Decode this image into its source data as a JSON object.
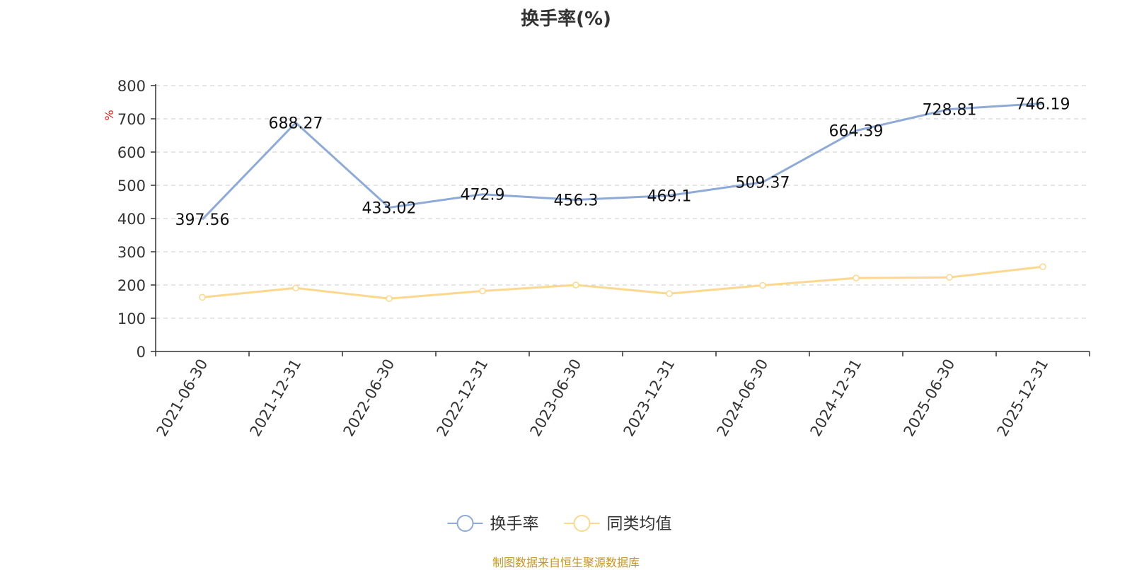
{
  "chart_data": {
    "type": "line",
    "title": "换手率(%)",
    "ylabel": "%",
    "xlabel": "",
    "categories": [
      "2021-06-30",
      "2021-12-31",
      "2022-06-30",
      "2022-12-31",
      "2023-06-30",
      "2023-12-31",
      "2024-06-30",
      "2024-12-31",
      "2025-06-30",
      "2025-12-31"
    ],
    "ylim": [
      0,
      800
    ],
    "yticks": [
      0,
      100,
      200,
      300,
      400,
      500,
      600,
      700,
      800
    ],
    "grid": true,
    "legend_position": "bottom",
    "series": [
      {
        "name": "换手率",
        "color": "#8eaad8",
        "values": [
          397.56,
          688.27,
          433.02,
          472.9,
          456.3,
          469.1,
          509.37,
          664.39,
          728.81,
          746.19
        ],
        "labels": [
          "397.56",
          "688.27",
          "433.02",
          "472.9",
          "456.3",
          "469.1",
          "509.37",
          "664.39",
          "728.81",
          "746.19"
        ],
        "show_labels": true,
        "show_markers": false
      },
      {
        "name": "同类均值",
        "color": "#fcd88e",
        "values": [
          163,
          191,
          159,
          182,
          200,
          174,
          199,
          221,
          223,
          255
        ],
        "show_labels": false,
        "show_markers": true
      }
    ]
  },
  "source_note": "制图数据来自恒生聚源数据库"
}
